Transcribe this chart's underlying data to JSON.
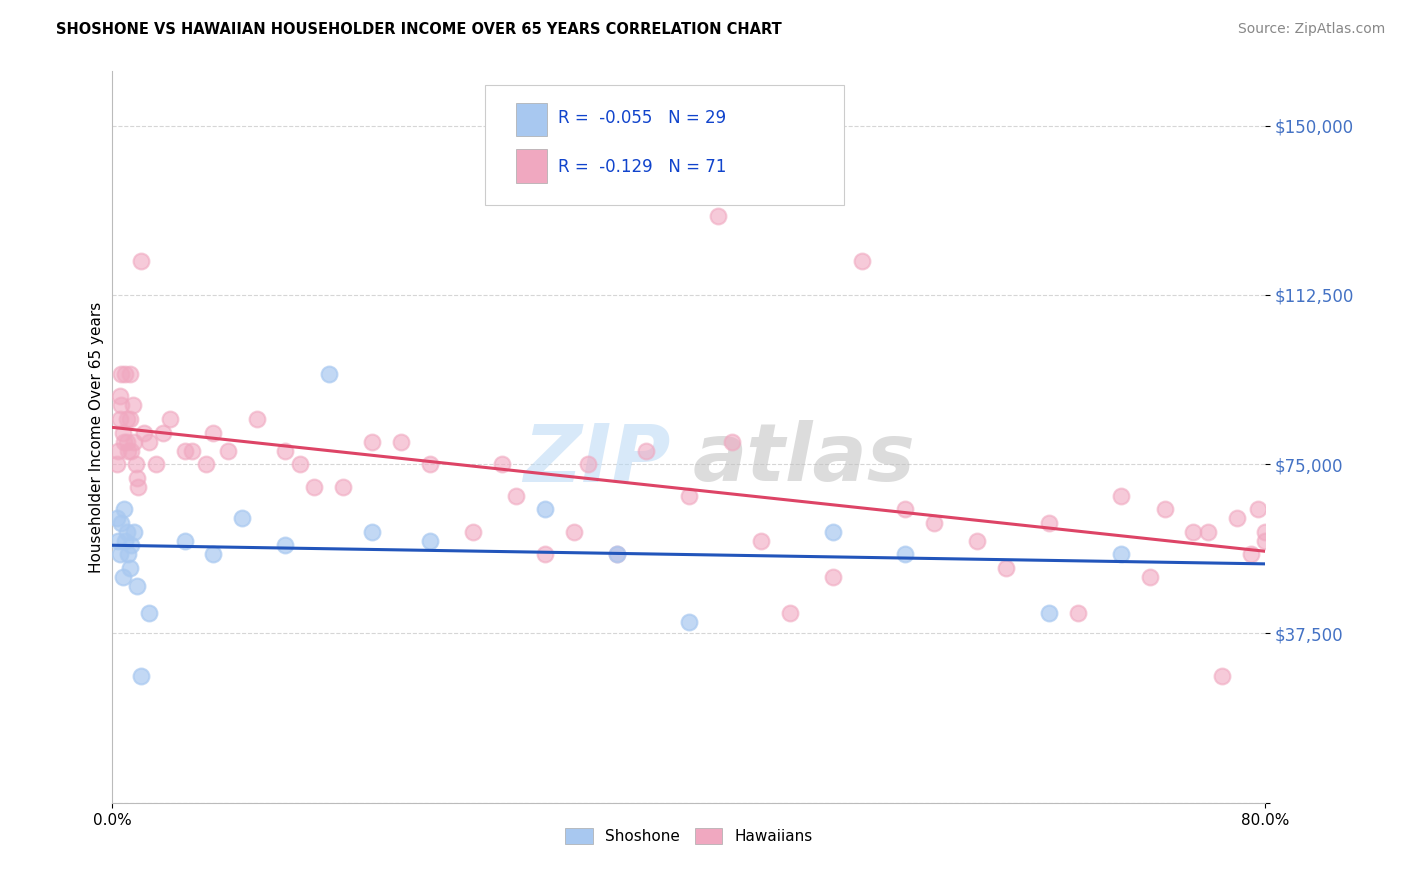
{
  "title": "SHOSHONE VS HAWAIIAN HOUSEHOLDER INCOME OVER 65 YEARS CORRELATION CHART",
  "source": "Source: ZipAtlas.com",
  "ylabel": "Householder Income Over 65 years",
  "legend_labels": [
    "Shoshone",
    "Hawaiians"
  ],
  "legend_r": [
    -0.055,
    -0.129
  ],
  "legend_n": [
    29,
    71
  ],
  "shoshone_color": "#a8c8f0",
  "hawaiian_color": "#f0a8c0",
  "shoshone_line_color": "#2255bb",
  "hawaiian_line_color": "#dd4466",
  "yticks": [
    0,
    37500,
    75000,
    112500,
    150000
  ],
  "ytick_labels": [
    "",
    "$37,500",
    "$75,000",
    "$112,500",
    "$150,000"
  ],
  "xmin": 0.0,
  "xmax": 80.0,
  "ymin": 0,
  "ymax": 162000,
  "shoshone_x": [
    0.3,
    0.4,
    0.5,
    0.6,
    0.7,
    0.8,
    0.9,
    1.0,
    1.1,
    1.2,
    1.3,
    1.5,
    1.7,
    2.0,
    2.5,
    5.0,
    7.0,
    9.0,
    12.0,
    15.0,
    18.0,
    22.0,
    30.0,
    35.0,
    40.0,
    50.0,
    55.0,
    65.0,
    70.0
  ],
  "shoshone_y": [
    63000,
    58000,
    55000,
    62000,
    50000,
    65000,
    58000,
    60000,
    55000,
    52000,
    57000,
    60000,
    48000,
    28000,
    42000,
    58000,
    55000,
    63000,
    57000,
    95000,
    60000,
    58000,
    65000,
    55000,
    40000,
    60000,
    55000,
    42000,
    55000
  ],
  "hawaiian_x": [
    0.3,
    0.4,
    0.5,
    0.5,
    0.6,
    0.6,
    0.7,
    0.8,
    0.9,
    1.0,
    1.0,
    1.1,
    1.2,
    1.2,
    1.3,
    1.4,
    1.5,
    1.6,
    1.7,
    1.8,
    2.0,
    2.2,
    2.5,
    3.0,
    3.5,
    4.0,
    5.0,
    5.5,
    6.5,
    7.0,
    8.0,
    10.0,
    12.0,
    13.0,
    14.0,
    16.0,
    18.0,
    20.0,
    22.0,
    25.0,
    27.0,
    28.0,
    30.0,
    32.0,
    33.0,
    35.0,
    37.0,
    40.0,
    42.0,
    43.0,
    45.0,
    47.0,
    50.0,
    52.0,
    55.0,
    57.0,
    60.0,
    62.0,
    65.0,
    67.0,
    70.0,
    72.0,
    73.0,
    75.0,
    76.0,
    77.0,
    78.0,
    79.0,
    79.5,
    80.0,
    80.0
  ],
  "hawaiian_y": [
    75000,
    78000,
    90000,
    85000,
    95000,
    88000,
    82000,
    80000,
    95000,
    85000,
    80000,
    78000,
    95000,
    85000,
    78000,
    88000,
    80000,
    75000,
    72000,
    70000,
    120000,
    82000,
    80000,
    75000,
    82000,
    85000,
    78000,
    78000,
    75000,
    82000,
    78000,
    85000,
    78000,
    75000,
    70000,
    70000,
    80000,
    80000,
    75000,
    60000,
    75000,
    68000,
    55000,
    60000,
    75000,
    55000,
    78000,
    68000,
    130000,
    80000,
    58000,
    42000,
    50000,
    120000,
    65000,
    62000,
    58000,
    52000,
    62000,
    42000,
    68000,
    50000,
    65000,
    60000,
    60000,
    28000,
    63000,
    55000,
    65000,
    60000,
    58000
  ]
}
